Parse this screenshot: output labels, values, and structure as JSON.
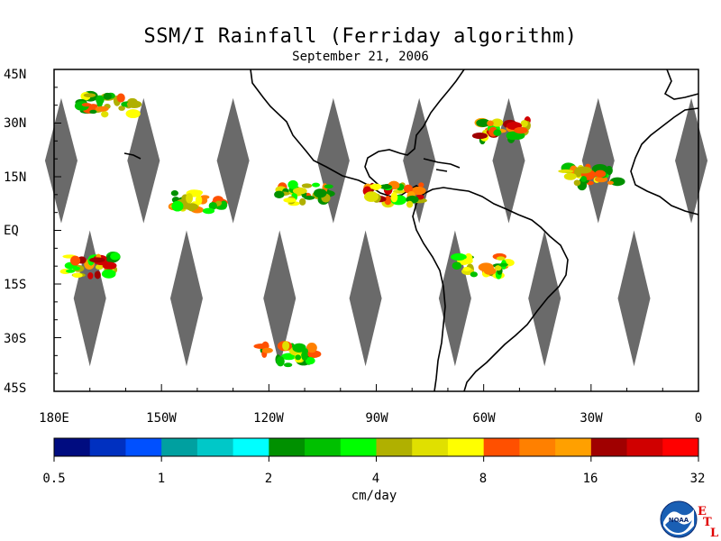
{
  "title": "SSM/I Rainfall (Ferriday algorithm)",
  "subtitle": "September 21, 2006",
  "lat_labels": [
    "45N",
    "30N",
    "15N",
    "EQ",
    "15S",
    "30S",
    "45S"
  ],
  "lon_labels": [
    "180E",
    "150W",
    "120W",
    "90W",
    "60W",
    "30W",
    "0"
  ],
  "colorbar": {
    "unit": "cm/day",
    "tick_labels": [
      "0.5",
      "1",
      "2",
      "4",
      "8",
      "16",
      "32"
    ],
    "colors": [
      "#000c80",
      "#0030c0",
      "#0050ff",
      "#00a0a0",
      "#00c8c8",
      "#00ffff",
      "#009000",
      "#00c000",
      "#00ff00",
      "#b0b000",
      "#e0e000",
      "#ffff00",
      "#ff5000",
      "#ff8000",
      "#ffa000",
      "#a00000",
      "#d00000",
      "#ff0000"
    ]
  },
  "logo": {
    "agency_text": "NOAA",
    "lab_letters": [
      "E",
      "T",
      "L"
    ]
  },
  "chart_data": {
    "type": "heatmap",
    "title": "SSM/I Rainfall (Ferriday algorithm)",
    "subtitle": "September 21, 2006",
    "xlabel": "",
    "ylabel": "",
    "x_range": [
      -180,
      0
    ],
    "y_range": [
      -45,
      45
    ],
    "colorbar_label": "cm/day",
    "colorbar_ticks": [
      0.5,
      1,
      2,
      4,
      8,
      16,
      32
    ],
    "missing_data_swaths_lon_center": [
      -178,
      -155,
      -130,
      -102,
      -78,
      -53,
      -28,
      -2,
      -170,
      -143,
      -117,
      -93,
      -68,
      -43,
      -18
    ],
    "rain_regions": [
      {
        "lon": -165,
        "lat": 35,
        "max_cm_day": 8
      },
      {
        "lon": -140,
        "lat": 8,
        "max_cm_day": 8
      },
      {
        "lon": -110,
        "lat": 10,
        "max_cm_day": 8
      },
      {
        "lon": -85,
        "lat": 10,
        "max_cm_day": 16
      },
      {
        "lon": -55,
        "lat": 28,
        "max_cm_day": 16
      },
      {
        "lon": -170,
        "lat": -10,
        "max_cm_day": 16
      },
      {
        "lon": -115,
        "lat": -35,
        "max_cm_day": 8
      },
      {
        "lon": -60,
        "lat": -10,
        "max_cm_day": 8
      },
      {
        "lon": -30,
        "lat": 15,
        "max_cm_day": 8
      }
    ]
  }
}
